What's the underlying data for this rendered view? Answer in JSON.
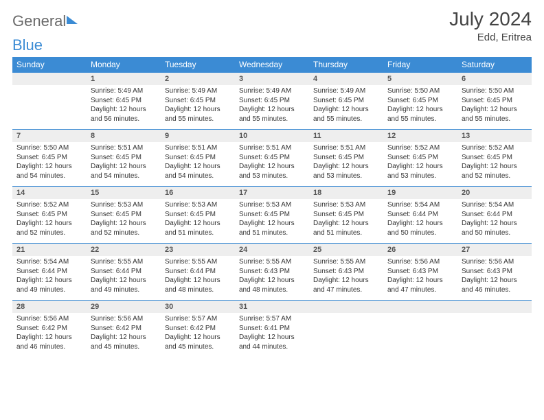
{
  "logo": {
    "part1": "General",
    "part2": "Blue"
  },
  "title": "July 2024",
  "location": "Edd, Eritrea",
  "colors": {
    "header_bg": "#3b8bd4",
    "header_text": "#ffffff",
    "date_row_bg": "#eeeeee",
    "rule": "#3b8bd4",
    "text": "#333333"
  },
  "day_headers": [
    "Sunday",
    "Monday",
    "Tuesday",
    "Wednesday",
    "Thursday",
    "Friday",
    "Saturday"
  ],
  "weeks": [
    {
      "dates": [
        "",
        "1",
        "2",
        "3",
        "4",
        "5",
        "6"
      ],
      "cells": [
        null,
        {
          "sunrise": "5:49 AM",
          "sunset": "6:45 PM",
          "daylight": "12 hours and 56 minutes."
        },
        {
          "sunrise": "5:49 AM",
          "sunset": "6:45 PM",
          "daylight": "12 hours and 55 minutes."
        },
        {
          "sunrise": "5:49 AM",
          "sunset": "6:45 PM",
          "daylight": "12 hours and 55 minutes."
        },
        {
          "sunrise": "5:49 AM",
          "sunset": "6:45 PM",
          "daylight": "12 hours and 55 minutes."
        },
        {
          "sunrise": "5:50 AM",
          "sunset": "6:45 PM",
          "daylight": "12 hours and 55 minutes."
        },
        {
          "sunrise": "5:50 AM",
          "sunset": "6:45 PM",
          "daylight": "12 hours and 55 minutes."
        }
      ]
    },
    {
      "dates": [
        "7",
        "8",
        "9",
        "10",
        "11",
        "12",
        "13"
      ],
      "cells": [
        {
          "sunrise": "5:50 AM",
          "sunset": "6:45 PM",
          "daylight": "12 hours and 54 minutes."
        },
        {
          "sunrise": "5:51 AM",
          "sunset": "6:45 PM",
          "daylight": "12 hours and 54 minutes."
        },
        {
          "sunrise": "5:51 AM",
          "sunset": "6:45 PM",
          "daylight": "12 hours and 54 minutes."
        },
        {
          "sunrise": "5:51 AM",
          "sunset": "6:45 PM",
          "daylight": "12 hours and 53 minutes."
        },
        {
          "sunrise": "5:51 AM",
          "sunset": "6:45 PM",
          "daylight": "12 hours and 53 minutes."
        },
        {
          "sunrise": "5:52 AM",
          "sunset": "6:45 PM",
          "daylight": "12 hours and 53 minutes."
        },
        {
          "sunrise": "5:52 AM",
          "sunset": "6:45 PM",
          "daylight": "12 hours and 52 minutes."
        }
      ]
    },
    {
      "dates": [
        "14",
        "15",
        "16",
        "17",
        "18",
        "19",
        "20"
      ],
      "cells": [
        {
          "sunrise": "5:52 AM",
          "sunset": "6:45 PM",
          "daylight": "12 hours and 52 minutes."
        },
        {
          "sunrise": "5:53 AM",
          "sunset": "6:45 PM",
          "daylight": "12 hours and 52 minutes."
        },
        {
          "sunrise": "5:53 AM",
          "sunset": "6:45 PM",
          "daylight": "12 hours and 51 minutes."
        },
        {
          "sunrise": "5:53 AM",
          "sunset": "6:45 PM",
          "daylight": "12 hours and 51 minutes."
        },
        {
          "sunrise": "5:53 AM",
          "sunset": "6:45 PM",
          "daylight": "12 hours and 51 minutes."
        },
        {
          "sunrise": "5:54 AM",
          "sunset": "6:44 PM",
          "daylight": "12 hours and 50 minutes."
        },
        {
          "sunrise": "5:54 AM",
          "sunset": "6:44 PM",
          "daylight": "12 hours and 50 minutes."
        }
      ]
    },
    {
      "dates": [
        "21",
        "22",
        "23",
        "24",
        "25",
        "26",
        "27"
      ],
      "cells": [
        {
          "sunrise": "5:54 AM",
          "sunset": "6:44 PM",
          "daylight": "12 hours and 49 minutes."
        },
        {
          "sunrise": "5:55 AM",
          "sunset": "6:44 PM",
          "daylight": "12 hours and 49 minutes."
        },
        {
          "sunrise": "5:55 AM",
          "sunset": "6:44 PM",
          "daylight": "12 hours and 48 minutes."
        },
        {
          "sunrise": "5:55 AM",
          "sunset": "6:43 PM",
          "daylight": "12 hours and 48 minutes."
        },
        {
          "sunrise": "5:55 AM",
          "sunset": "6:43 PM",
          "daylight": "12 hours and 47 minutes."
        },
        {
          "sunrise": "5:56 AM",
          "sunset": "6:43 PM",
          "daylight": "12 hours and 47 minutes."
        },
        {
          "sunrise": "5:56 AM",
          "sunset": "6:43 PM",
          "daylight": "12 hours and 46 minutes."
        }
      ]
    },
    {
      "dates": [
        "28",
        "29",
        "30",
        "31",
        "",
        "",
        ""
      ],
      "cells": [
        {
          "sunrise": "5:56 AM",
          "sunset": "6:42 PM",
          "daylight": "12 hours and 46 minutes."
        },
        {
          "sunrise": "5:56 AM",
          "sunset": "6:42 PM",
          "daylight": "12 hours and 45 minutes."
        },
        {
          "sunrise": "5:57 AM",
          "sunset": "6:42 PM",
          "daylight": "12 hours and 45 minutes."
        },
        {
          "sunrise": "5:57 AM",
          "sunset": "6:41 PM",
          "daylight": "12 hours and 44 minutes."
        },
        null,
        null,
        null
      ]
    }
  ],
  "labels": {
    "sunrise": "Sunrise:",
    "sunset": "Sunset:",
    "daylight": "Daylight:"
  }
}
